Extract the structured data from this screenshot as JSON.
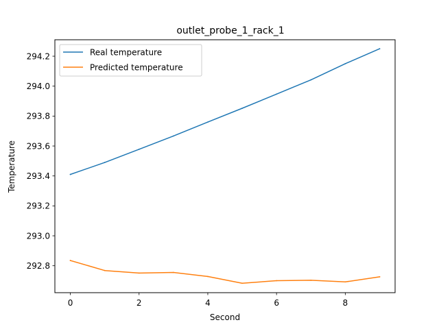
{
  "chart_data": {
    "type": "line",
    "title": "outlet_probe_1_rack_1",
    "xlabel": "Second",
    "ylabel": "Temperature",
    "xlim": [
      -0.45,
      9.45
    ],
    "ylim": [
      292.62,
      294.31
    ],
    "x": [
      0,
      1,
      2,
      3,
      4,
      5,
      6,
      7,
      8,
      9
    ],
    "x_ticks": [
      0,
      2,
      4,
      6,
      8
    ],
    "x_tick_labels": [
      "0",
      "2",
      "4",
      "6",
      "8"
    ],
    "y_ticks": [
      292.8,
      293.0,
      293.2,
      293.4,
      293.6,
      293.8,
      294.0,
      294.2
    ],
    "y_tick_labels": [
      "292.8",
      "293.0",
      "293.2",
      "293.4",
      "293.6",
      "293.8",
      "294.0",
      "294.2"
    ],
    "grid": false,
    "legend_position": "upper-left",
    "series": [
      {
        "name": "Real temperature",
        "color": "#1f77b4",
        "values": [
          293.41,
          293.49,
          293.578,
          293.667,
          293.76,
          293.852,
          293.947,
          294.042,
          294.15,
          294.25
        ]
      },
      {
        "name": "Predicted temperature",
        "color": "#ff7f0e",
        "values": [
          292.835,
          292.768,
          292.751,
          292.755,
          292.728,
          292.683,
          292.7,
          292.703,
          292.692,
          292.726
        ]
      }
    ]
  }
}
